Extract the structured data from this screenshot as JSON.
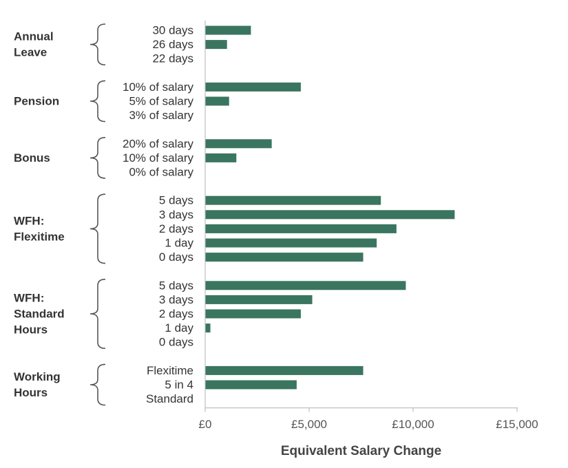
{
  "chart_data": {
    "type": "bar",
    "orientation": "horizontal",
    "xlabel": "Equivalent Salary Change",
    "xlim": [
      0,
      15000
    ],
    "xticks": [
      0,
      5000,
      10000,
      15000
    ],
    "xtick_labels": [
      "£0",
      "£5,000",
      "£10,000",
      "£15,000"
    ],
    "grid": false,
    "bar_color": "#3a7560",
    "groups": [
      {
        "name": "Annual Leave",
        "name_lines": [
          "Annual",
          "Leave"
        ],
        "categories": [
          "30 days",
          "26 days",
          "22 days"
        ],
        "values": [
          2200,
          1050,
          0
        ]
      },
      {
        "name": "Pension",
        "name_lines": [
          "Pension"
        ],
        "categories": [
          "10% of salary",
          "5% of salary",
          "3% of salary"
        ],
        "values": [
          4600,
          1150,
          0
        ]
      },
      {
        "name": "Bonus",
        "name_lines": [
          "Bonus"
        ],
        "categories": [
          "20% of salary",
          "10% of salary",
          "0% of salary"
        ],
        "values": [
          3200,
          1500,
          0
        ]
      },
      {
        "name": "WFH: Flexitime",
        "name_lines": [
          "WFH:",
          "Flexitime"
        ],
        "categories": [
          "5 days",
          "3 days",
          "2 days",
          "1 day",
          "0 days"
        ],
        "values": [
          8450,
          12000,
          9200,
          8250,
          7600
        ]
      },
      {
        "name": "WFH: Standard Hours",
        "name_lines": [
          "WFH:",
          "Standard",
          "Hours"
        ],
        "categories": [
          "5 days",
          "3 days",
          "2 days",
          "1 day",
          "0 days"
        ],
        "values": [
          9650,
          5150,
          4600,
          250,
          0
        ]
      },
      {
        "name": "Working Hours",
        "name_lines": [
          "Working",
          "Hours"
        ],
        "categories": [
          "Flexitime",
          "5 in 4",
          "Standard"
        ],
        "values": [
          7600,
          4400,
          0
        ]
      }
    ]
  }
}
